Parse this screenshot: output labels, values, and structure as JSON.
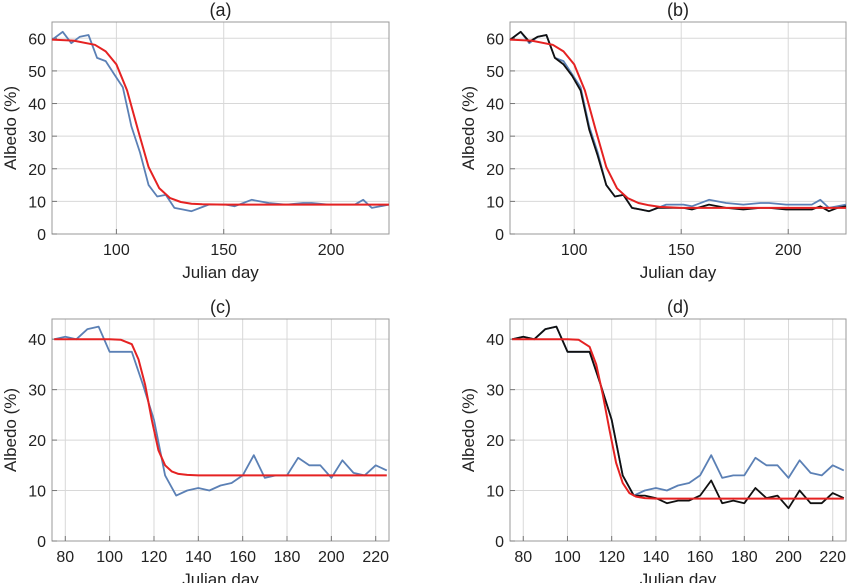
{
  "chart_data": [
    {
      "type": "line",
      "title": "(a)",
      "xlabel": "Julian day",
      "ylabel": "Albedo (%)",
      "xlim": [
        70,
        227
      ],
      "ylim": [
        0,
        65
      ],
      "xticks": [
        100,
        150,
        200
      ],
      "yticks": [
        0,
        10,
        20,
        30,
        40,
        50,
        60
      ],
      "grid": true,
      "series": [
        {
          "color": "#5b80b5",
          "x": [
            70,
            75,
            79,
            83,
            87,
            91,
            95,
            99,
            103,
            107,
            111,
            115,
            119,
            123,
            127,
            131,
            135,
            139,
            143,
            151,
            155,
            163,
            171,
            179,
            187,
            191,
            199,
            203,
            211,
            215,
            219,
            223,
            227
          ],
          "y": [
            59.5,
            62,
            58.5,
            60.5,
            61,
            54,
            53,
            49,
            45,
            33,
            25,
            15,
            11.5,
            12,
            8,
            7.5,
            7,
            8,
            9,
            9,
            8.5,
            10.5,
            9.5,
            9,
            9.5,
            9.5,
            9,
            9,
            9,
            10.5,
            8,
            8.5,
            9
          ]
        },
        {
          "color": "#e52222",
          "x": [
            70,
            80,
            90,
            95,
            100,
            105,
            110,
            115,
            120,
            125,
            130,
            135,
            140,
            150,
            160,
            180,
            200,
            227
          ],
          "y": [
            59.6,
            59.3,
            58,
            56,
            52,
            44,
            32,
            20.5,
            14,
            11,
            9.8,
            9.3,
            9.1,
            9,
            9,
            9,
            9,
            9
          ]
        }
      ]
    },
    {
      "type": "line",
      "title": "(b)",
      "xlabel": "Julian day",
      "ylabel": "Albedo (%)",
      "xlim": [
        70,
        227
      ],
      "ylim": [
        0,
        65
      ],
      "xticks": [
        100,
        150,
        200
      ],
      "yticks": [
        0,
        10,
        20,
        30,
        40,
        50,
        60
      ],
      "grid": true,
      "series": [
        {
          "color": "#5b80b5",
          "x": [
            70,
            75,
            79,
            83,
            87,
            91,
            95,
            99,
            103,
            107,
            111,
            115,
            119,
            123,
            127,
            131,
            135,
            139,
            143,
            151,
            155,
            163,
            171,
            179,
            187,
            191,
            199,
            203,
            211,
            215,
            219,
            223,
            227
          ],
          "y": [
            59.5,
            62,
            58.5,
            60.5,
            61,
            54,
            53,
            49,
            45,
            33,
            25,
            15,
            11.5,
            12,
            8,
            7.5,
            7,
            8,
            9,
            9,
            8.5,
            10.5,
            9.5,
            9,
            9.5,
            9.5,
            9,
            9,
            9,
            10.5,
            8,
            8.5,
            9
          ]
        },
        {
          "color": "#111111",
          "x": [
            70,
            75,
            79,
            83,
            87,
            91,
            95,
            99,
            103,
            107,
            111,
            115,
            119,
            123,
            127,
            131,
            135,
            139,
            143,
            151,
            155,
            163,
            171,
            179,
            187,
            191,
            199,
            203,
            211,
            215,
            219,
            223,
            227
          ],
          "y": [
            59.5,
            62,
            59,
            60.5,
            61,
            54,
            52,
            48.5,
            44,
            32,
            24,
            15,
            11.5,
            12,
            8,
            7.5,
            7,
            8,
            8,
            8,
            7.5,
            9,
            8,
            7.5,
            8,
            8,
            7.5,
            7.5,
            7.5,
            8.5,
            7,
            8,
            8.5
          ]
        },
        {
          "color": "#e52222",
          "x": [
            70,
            80,
            90,
            95,
            100,
            105,
            110,
            115,
            120,
            125,
            130,
            135,
            140,
            150,
            160,
            180,
            200,
            227
          ],
          "y": [
            59.6,
            59.3,
            58,
            56,
            52,
            44,
            32,
            20.5,
            14,
            11,
            9.5,
            8.8,
            8.3,
            8,
            8,
            8,
            8,
            8
          ]
        }
      ]
    },
    {
      "type": "line",
      "title": "(c)",
      "xlabel": "Julian day",
      "ylabel": "Albedo (%)",
      "xlim": [
        74,
        226
      ],
      "ylim": [
        0,
        44
      ],
      "xticks": [
        80,
        100,
        120,
        140,
        160,
        180,
        200,
        220
      ],
      "yticks": [
        0,
        10,
        20,
        30,
        40
      ],
      "grid": true,
      "series": [
        {
          "color": "#5b80b5",
          "x": [
            75,
            80,
            85,
            90,
            95,
            100,
            105,
            110,
            115,
            120,
            125,
            130,
            135,
            140,
            145,
            150,
            155,
            160,
            165,
            170,
            175,
            180,
            185,
            190,
            195,
            200,
            205,
            210,
            215,
            220,
            225
          ],
          "y": [
            40,
            40.5,
            40,
            42,
            42.5,
            37.5,
            37.5,
            37.5,
            31,
            24,
            13,
            9,
            10,
            10.5,
            10,
            11,
            11.5,
            13,
            17,
            12.5,
            13,
            13,
            16.5,
            15,
            15,
            12.5,
            16,
            13.5,
            13,
            15,
            14
          ]
        },
        {
          "color": "#e52222",
          "x": [
            75,
            100,
            105,
            110,
            113,
            116,
            119,
            122,
            125,
            128,
            131,
            135,
            140,
            150,
            160,
            180,
            200,
            225
          ],
          "y": [
            40,
            40,
            39.9,
            39,
            36,
            31,
            24,
            18,
            15,
            13.8,
            13.3,
            13.1,
            13,
            13,
            13,
            13,
            13,
            13
          ]
        }
      ]
    },
    {
      "type": "line",
      "title": "(d)",
      "xlabel": "Julian day",
      "ylabel": "Albedo (%)",
      "xlim": [
        74,
        226
      ],
      "ylim": [
        0,
        44
      ],
      "xticks": [
        80,
        100,
        120,
        140,
        160,
        180,
        200,
        220
      ],
      "yticks": [
        0,
        10,
        20,
        30,
        40
      ],
      "grid": true,
      "series": [
        {
          "color": "#5b80b5",
          "x": [
            75,
            80,
            85,
            90,
            95,
            100,
            105,
            110,
            115,
            120,
            125,
            130,
            135,
            140,
            145,
            150,
            155,
            160,
            165,
            170,
            175,
            180,
            185,
            190,
            195,
            200,
            205,
            210,
            215,
            220,
            225
          ],
          "y": [
            40,
            40.5,
            40,
            42,
            42.5,
            37.5,
            37.5,
            37.5,
            31,
            24,
            13,
            9,
            10,
            10.5,
            10,
            11,
            11.5,
            13,
            17,
            12.5,
            13,
            13,
            16.5,
            15,
            15,
            12.5,
            16,
            13.5,
            13,
            15,
            14
          ]
        },
        {
          "color": "#111111",
          "x": [
            75,
            80,
            85,
            90,
            95,
            100,
            105,
            110,
            115,
            120,
            125,
            130,
            135,
            140,
            145,
            150,
            155,
            160,
            165,
            170,
            175,
            180,
            185,
            190,
            195,
            200,
            205,
            210,
            215,
            220,
            225
          ],
          "y": [
            40,
            40.5,
            40,
            42,
            42.5,
            37.5,
            37.5,
            37.5,
            31,
            24,
            13,
            9,
            9,
            8.5,
            7.5,
            8,
            8,
            9,
            12,
            7.5,
            8,
            7.5,
            10.5,
            8.5,
            9,
            6.5,
            10,
            7.5,
            7.5,
            9.5,
            8.5
          ]
        },
        {
          "color": "#e52222",
          "x": [
            75,
            100,
            105,
            110,
            113,
            116,
            119,
            122,
            125,
            128,
            131,
            135,
            140,
            150,
            160,
            180,
            200,
            225
          ],
          "y": [
            40,
            40,
            39.9,
            38.5,
            35,
            29,
            22,
            15.5,
            11.5,
            9.5,
            8.8,
            8.5,
            8.4,
            8.4,
            8.4,
            8.4,
            8.4,
            8.4
          ]
        }
      ]
    }
  ]
}
